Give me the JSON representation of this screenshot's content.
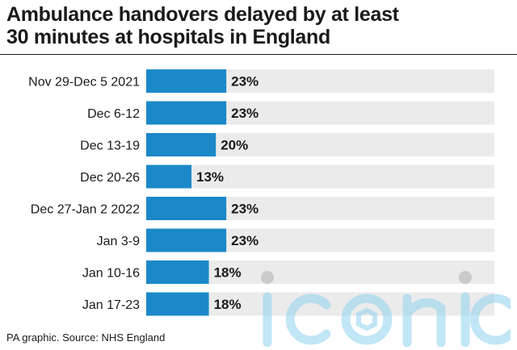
{
  "title_line1": "Ambulance handovers delayed by at least",
  "title_line2": "30 minutes at hospitals in England",
  "source": "PA graphic. Source: NHS England",
  "watermark": "iconic",
  "colors": {
    "bar": "#1b88c8",
    "track": "#ebebeb",
    "text": "#1a1a1a",
    "watermark": "#8fd3f0"
  },
  "chart_data": {
    "type": "bar",
    "orientation": "horizontal",
    "title": "Ambulance handovers delayed by at least 30 minutes at hospitals in England",
    "categories": [
      "Nov 29-Dec 5 2021",
      "Dec 6-12",
      "Dec 13-19",
      "Dec 20-26",
      "Dec 27-Jan 2 2022",
      "Jan 3-9",
      "Jan 10-16",
      "Jan 17-23"
    ],
    "values": [
      23,
      23,
      20,
      13,
      23,
      23,
      18,
      18
    ],
    "labels": [
      "23%",
      "23%",
      "20%",
      "13%",
      "23%",
      "23%",
      "18%",
      "18%"
    ],
    "unit": "%",
    "xlim": [
      0,
      100
    ],
    "grid": false,
    "legend": "none"
  }
}
